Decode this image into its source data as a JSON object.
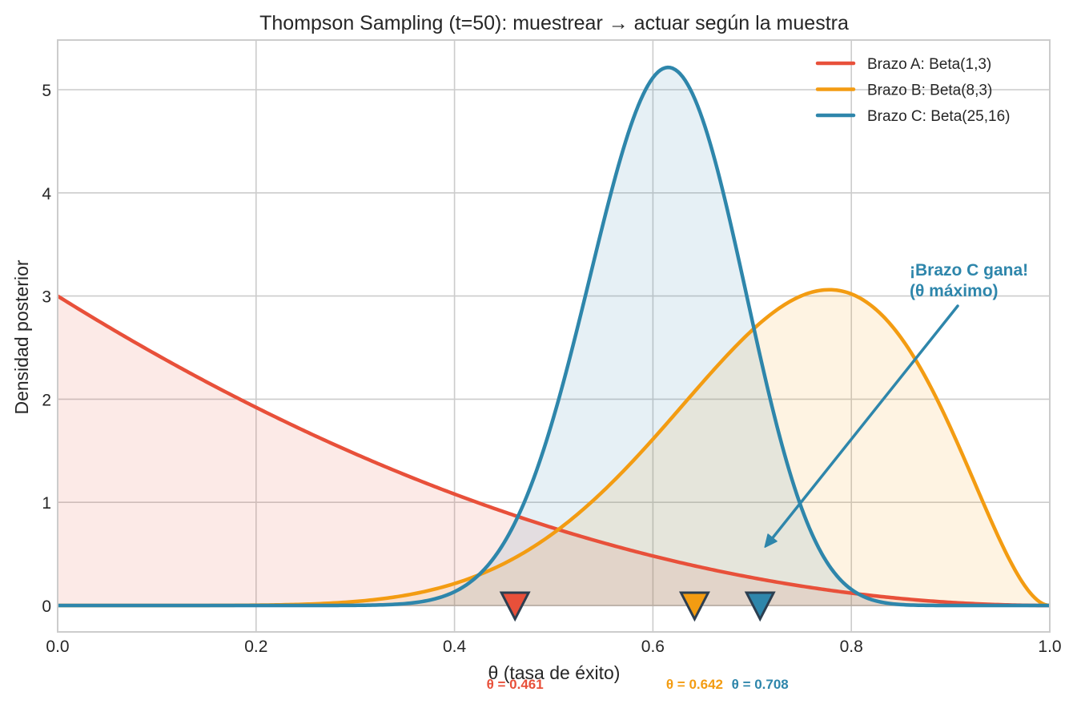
{
  "chart_data": {
    "type": "line",
    "title": "Thompson Sampling (t=50): muestrear → actuar según la muestra",
    "xlabel": "θ (tasa de éxito)",
    "ylabel": "Densidad posterior",
    "xlim": [
      0.0,
      1.0
    ],
    "ylim": [
      -0.26,
      5.45
    ],
    "xticks": [
      0.0,
      0.2,
      0.4,
      0.6,
      0.8,
      1.0
    ],
    "xtick_labels": [
      "0.0",
      "0.2",
      "0.4",
      "0.6",
      "0.8",
      "1.0"
    ],
    "yticks": [
      0,
      1,
      2,
      3,
      4,
      5
    ],
    "ytick_labels": [
      "0",
      "1",
      "2",
      "3",
      "4",
      "5"
    ],
    "grid": true,
    "legend_position": "upper right",
    "series": [
      {
        "name": "Brazo A: Beta(1,3)",
        "alpha": 1,
        "beta": 3,
        "color": "#e8503a",
        "fill": true,
        "sample": 0.461,
        "sample_label": "θ = 0.461"
      },
      {
        "name": "Brazo B: Beta(8,3)",
        "alpha": 8,
        "beta": 3,
        "color": "#f39c12",
        "fill": true,
        "sample": 0.642,
        "sample_label": "θ = 0.642"
      },
      {
        "name": "Brazo C: Beta(25,16)",
        "alpha": 25,
        "beta": 16,
        "color": "#2e86ab",
        "fill": true,
        "sample": 0.708,
        "sample_label": "θ = 0.708"
      }
    ],
    "annotations": [
      {
        "text_line1": "¡Brazo C gana!",
        "text_line2": "(θ máximo)",
        "color": "#2e86ab",
        "text_xy": [
          0.858,
          3.05
        ],
        "arrow_to": [
          0.708,
          0.55
        ]
      }
    ]
  }
}
